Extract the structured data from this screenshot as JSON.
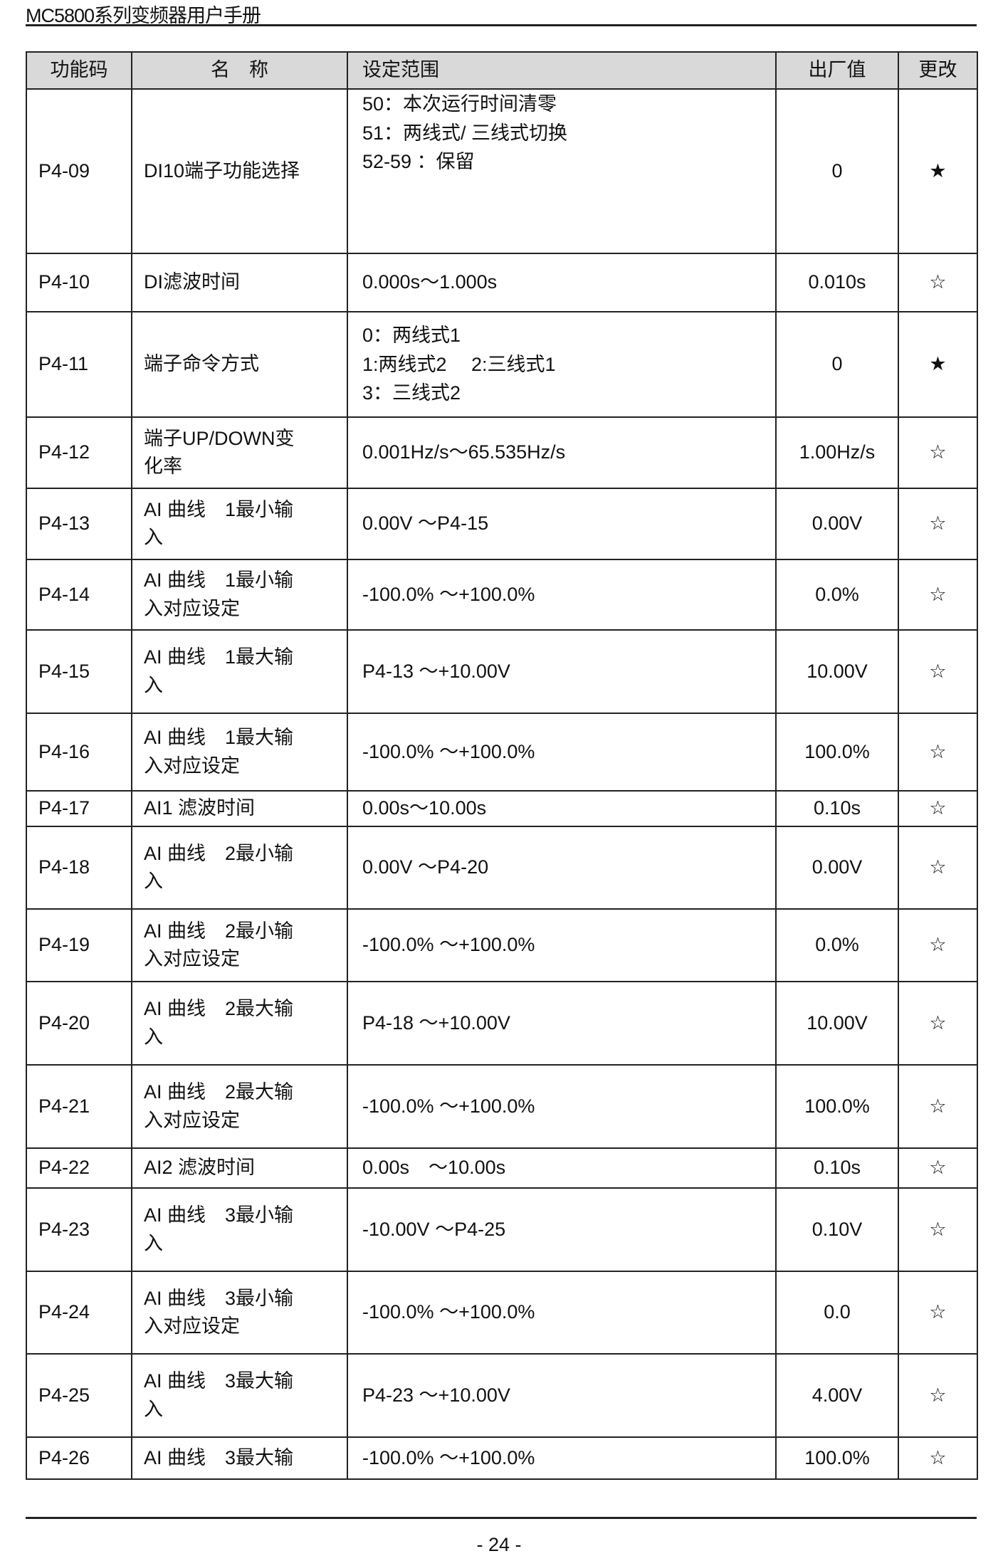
{
  "header": {
    "title": "MC5800系列变频器用户手册"
  },
  "table": {
    "columns": [
      "功能码",
      "名　称",
      "设定范围",
      "出厂值",
      "更改"
    ],
    "rows": [
      {
        "code": "P4-09",
        "name": [
          "DI10端子功能选择"
        ],
        "range": [
          "50：本次运行时间清零",
          "51：两线式/ 三线式切换",
          "52-59 ：保留"
        ],
        "default": "0",
        "change": "★",
        "h": 231,
        "rangeTop": true
      },
      {
        "code": "P4-10",
        "name": [
          "DI滤波时间"
        ],
        "range": [
          "0.000s～1.000s"
        ],
        "default": "0.010s",
        "change": "☆",
        "h": 82
      },
      {
        "code": "P4-11",
        "name": [
          "端子命令方式"
        ],
        "range": [
          "0：两线式1",
          "1:两线式2　 2:三线式1",
          "3：三线式2"
        ],
        "default": "0",
        "change": "★",
        "h": 148
      },
      {
        "code": "P4-12",
        "name": [
          "端子UP/DOWN变",
          "化率"
        ],
        "range": [
          "0.001Hz/s～65.535Hz/s"
        ],
        "default": "1.00Hz/s",
        "change": "☆",
        "h": 100
      },
      {
        "code": "P4-13",
        "name": [
          "AI 曲线　1最小输",
          "入"
        ],
        "range": [
          "0.00V ～P4-15"
        ],
        "default": "0.00V",
        "change": "☆",
        "h": 100
      },
      {
        "code": "P4-14",
        "name": [
          "AI 曲线　1最小输",
          "入对应设定"
        ],
        "range": [
          "-100.0% ～+100.0%"
        ],
        "default": "0.0%",
        "change": "☆",
        "h": 99
      },
      {
        "code": "P4-15",
        "name": [
          "AI 曲线　1最大输",
          "入"
        ],
        "range": [
          "P4-13 ～+10.00V"
        ],
        "default": "10.00V",
        "change": "☆",
        "h": 117
      },
      {
        "code": "P4-16",
        "name": [
          "AI 曲线　1最大输",
          "入对应设定"
        ],
        "range": [
          "-100.0% ～+100.0%"
        ],
        "default": "100.0%",
        "change": "☆",
        "h": 109
      },
      {
        "code": "P4-17",
        "name": [
          "AI1 滤波时间"
        ],
        "range": [
          "0.00s～10.00s"
        ],
        "default": "0.10s",
        "change": "☆",
        "h": 50
      },
      {
        "code": "P4-18",
        "name": [
          "AI 曲线　2最小输",
          "入"
        ],
        "range": [
          "0.00V ～P4-20"
        ],
        "default": "0.00V",
        "change": "☆",
        "h": 116
      },
      {
        "code": "P4-19",
        "name": [
          "AI 曲线　2最小输",
          "入对应设定"
        ],
        "range": [
          "-100.0% ～+100.0%"
        ],
        "default": "0.0%",
        "change": "☆",
        "h": 102
      },
      {
        "code": "P4-20",
        "name": [
          "AI 曲线　2最大输",
          "入"
        ],
        "range": [
          "P4-18 ～+10.00V"
        ],
        "default": "10.00V",
        "change": "☆",
        "h": 117
      },
      {
        "code": "P4-21",
        "name": [
          "AI 曲线　2最大输",
          "入对应设定"
        ],
        "range": [
          "-100.0% ～+100.0%"
        ],
        "default": "100.0%",
        "change": "☆",
        "h": 117
      },
      {
        "code": "P4-22",
        "name": [
          "AI2 滤波时间"
        ],
        "range": [
          "0.00s　～10.00s"
        ],
        "default": "0.10s",
        "change": "☆",
        "h": 56
      },
      {
        "code": "P4-23",
        "name": [
          "AI 曲线　3最小输",
          "入"
        ],
        "range": [
          "-10.00V ～P4-25"
        ],
        "default": "0.10V",
        "change": "☆",
        "h": 117
      },
      {
        "code": "P4-24",
        "name": [
          "AI 曲线　3最小输",
          "入对应设定"
        ],
        "range": [
          "-100.0% ～+100.0%"
        ],
        "default": "0.0",
        "change": "☆",
        "h": 116
      },
      {
        "code": "P4-25",
        "name": [
          "AI 曲线　3最大输",
          "入"
        ],
        "range": [
          "P4-23 ～+10.00V"
        ],
        "default": "4.00V",
        "change": "☆",
        "h": 117
      },
      {
        "code": "P4-26",
        "name": [
          "AI 曲线　3最大输"
        ],
        "range": [
          "-100.0% ～+100.0%"
        ],
        "default": "100.0%",
        "change": "☆",
        "h": 59
      }
    ]
  },
  "footer": {
    "page": "- 24 -"
  }
}
